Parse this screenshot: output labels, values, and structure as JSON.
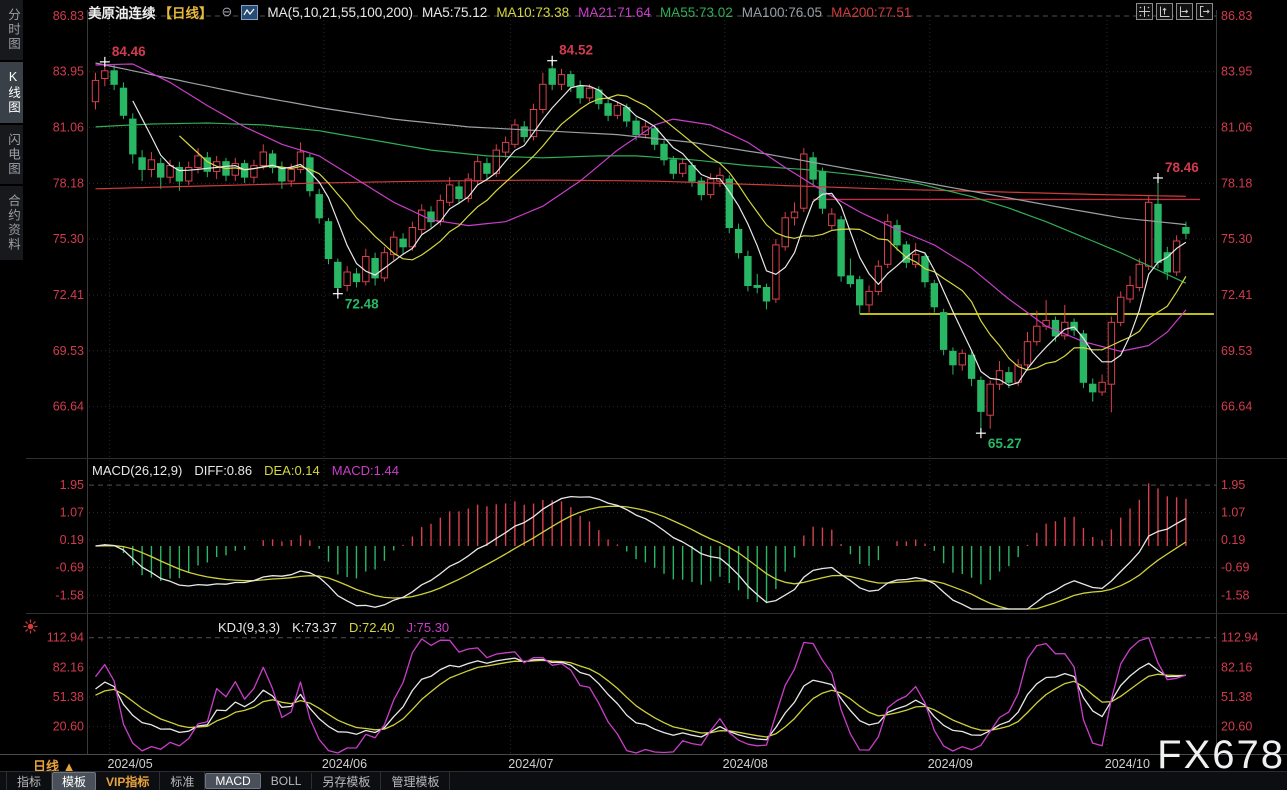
{
  "header": {
    "title": "美原油连续",
    "period_label": "【日线】",
    "collapse_icon": "⊖",
    "ma_setting": "MA(5,10,21,55,100,200)",
    "ma_values": [
      {
        "label": "MA5:75.12",
        "color": "#e8e8e8"
      },
      {
        "label": "MA10:73.38",
        "color": "#d6d640"
      },
      {
        "label": "MA21:71.64",
        "color": "#c93ec9"
      },
      {
        "label": "MA55:73.02",
        "color": "#2fae55"
      },
      {
        "label": "MA100:76.05",
        "color": "#9aa0a6"
      },
      {
        "label": "MA200:77.51",
        "color": "#d03c3c"
      }
    ],
    "icons": [
      "crosshair-icon",
      "scale-y-icon",
      "scale-x-icon",
      "exit-icon"
    ]
  },
  "sidebar": {
    "tabs": [
      {
        "label": "分时图",
        "active": false
      },
      {
        "label": "K线图",
        "active": true
      },
      {
        "label": "闪电图",
        "active": false
      },
      {
        "label": "合约资料",
        "active": false
      }
    ]
  },
  "macd_header": {
    "name": "MACD(26,12,9)",
    "diff": "DIFF:0.86",
    "dea": "DEA:0.14",
    "macd": "MACD:1.44"
  },
  "kdj_header": {
    "name": "KDJ(9,3,3)",
    "k": "K:73.37",
    "d": "D:72.40",
    "j": "J:75.30"
  },
  "bottom": {
    "period_button": "日线",
    "period_arrow": "▲",
    "dates": [
      "2024/05",
      "2024/06",
      "2024/07",
      "2024/08",
      "2024/09",
      "2024/10"
    ],
    "watermark": "FX678",
    "toolbar": [
      {
        "label": "指标",
        "state": "normal"
      },
      {
        "label": "模板",
        "state": "pressed"
      },
      {
        "label": "VIP指标",
        "state": "vip"
      },
      {
        "label": "标准",
        "state": "normal"
      },
      {
        "label": "MACD",
        "state": "pressed"
      },
      {
        "label": "BOLL",
        "state": "normal"
      },
      {
        "label": "另存模板",
        "state": "normal"
      },
      {
        "label": "管理模板",
        "state": "normal"
      }
    ]
  },
  "axes": {
    "main": [
      "86.83",
      "83.95",
      "81.06",
      "78.18",
      "75.30",
      "72.41",
      "69.53",
      "66.64"
    ],
    "macd": [
      "1.95",
      "1.07",
      "0.19",
      "-0.69",
      "-1.58"
    ],
    "kdj": [
      "112.94",
      "82.16",
      "51.38",
      "20.60"
    ]
  },
  "chart_data": {
    "type": "candlestick",
    "title": "美原油连续 日线 (WTI crude continuous, daily)",
    "ylim_main": [
      65.0,
      87.5
    ],
    "macd_panel": {
      "params": "26,12,9",
      "diff": 0.86,
      "dea": 0.14,
      "macd": 1.44,
      "ylim": [
        -2.0,
        2.3
      ]
    },
    "kdj_panel": {
      "params": "9,3,3",
      "k": 73.37,
      "d": 72.4,
      "j": 75.3,
      "ylim": [
        -10,
        135
      ]
    },
    "month_tick_days": [
      2,
      25,
      45,
      68,
      90,
      109
    ],
    "candles": [
      [
        82.4,
        83.9,
        82.0,
        83.5
      ],
      [
        83.6,
        84.46,
        83.2,
        84.0
      ],
      [
        84.0,
        84.3,
        83.0,
        83.3
      ],
      [
        83.1,
        83.4,
        81.5,
        81.7
      ],
      [
        81.5,
        81.8,
        79.2,
        79.7
      ],
      [
        79.5,
        79.9,
        78.3,
        78.9
      ],
      [
        78.9,
        79.8,
        78.5,
        79.4
      ],
      [
        79.2,
        79.5,
        77.9,
        78.5
      ],
      [
        78.5,
        79.4,
        78.2,
        79.1
      ],
      [
        79.0,
        79.3,
        77.8,
        78.3
      ],
      [
        78.3,
        79.3,
        78.1,
        79.0
      ],
      [
        79.0,
        80.0,
        78.7,
        79.6
      ],
      [
        79.5,
        79.8,
        78.5,
        78.8
      ],
      [
        78.8,
        79.6,
        78.4,
        79.3
      ],
      [
        79.3,
        79.5,
        78.3,
        78.6
      ],
      [
        78.6,
        79.5,
        78.3,
        79.2
      ],
      [
        79.2,
        79.4,
        78.2,
        78.5
      ],
      [
        78.5,
        79.4,
        78.2,
        79.1
      ],
      [
        79.1,
        80.2,
        78.9,
        79.8
      ],
      [
        79.7,
        79.9,
        78.7,
        79.0
      ],
      [
        79.0,
        79.3,
        77.9,
        78.3
      ],
      [
        78.3,
        79.2,
        78.0,
        78.9
      ],
      [
        78.9,
        80.3,
        78.7,
        79.8
      ],
      [
        79.5,
        79.7,
        77.5,
        77.8
      ],
      [
        77.6,
        77.9,
        76.1,
        76.4
      ],
      [
        76.2,
        76.4,
        74.0,
        74.3
      ],
      [
        74.1,
        74.3,
        72.48,
        72.8
      ],
      [
        72.9,
        73.9,
        72.6,
        73.6
      ],
      [
        73.5,
        73.8,
        72.8,
        73.1
      ],
      [
        73.1,
        74.8,
        72.9,
        74.4
      ],
      [
        74.3,
        74.6,
        72.9,
        73.3
      ],
      [
        73.3,
        74.9,
        73.1,
        74.6
      ],
      [
        74.5,
        75.7,
        74.2,
        75.4
      ],
      [
        75.3,
        75.6,
        74.5,
        74.9
      ],
      [
        74.9,
        76.2,
        74.7,
        75.9
      ],
      [
        75.8,
        77.1,
        75.5,
        76.8
      ],
      [
        76.7,
        77.0,
        75.9,
        76.2
      ],
      [
        76.2,
        77.6,
        76.0,
        77.3
      ],
      [
        77.2,
        78.5,
        77.0,
        78.1
      ],
      [
        78.0,
        78.3,
        77.1,
        77.4
      ],
      [
        77.4,
        78.7,
        77.2,
        78.4
      ],
      [
        78.3,
        79.6,
        78.1,
        79.3
      ],
      [
        79.2,
        79.5,
        78.4,
        78.7
      ],
      [
        78.7,
        80.2,
        78.5,
        79.9
      ],
      [
        79.8,
        80.6,
        79.5,
        80.3
      ],
      [
        80.2,
        81.5,
        80.0,
        81.2
      ],
      [
        81.1,
        81.4,
        80.3,
        80.6
      ],
      [
        80.6,
        82.3,
        80.4,
        82.0
      ],
      [
        82.0,
        83.9,
        81.8,
        83.3
      ],
      [
        84.1,
        84.52,
        83.0,
        83.3
      ],
      [
        83.3,
        84.1,
        83.0,
        83.8
      ],
      [
        83.8,
        84.0,
        82.9,
        83.2
      ],
      [
        83.2,
        83.5,
        82.3,
        82.6
      ],
      [
        82.6,
        83.3,
        82.4,
        83.1
      ],
      [
        83.0,
        83.2,
        82.0,
        82.3
      ],
      [
        82.3,
        82.6,
        81.4,
        81.7
      ],
      [
        81.7,
        82.4,
        81.5,
        82.2
      ],
      [
        82.1,
        82.3,
        81.1,
        81.4
      ],
      [
        81.4,
        81.6,
        80.4,
        80.7
      ],
      [
        80.7,
        81.4,
        80.5,
        81.1
      ],
      [
        81.0,
        81.2,
        79.9,
        80.2
      ],
      [
        80.2,
        80.4,
        79.1,
        79.4
      ],
      [
        79.4,
        79.6,
        78.4,
        78.7
      ],
      [
        78.7,
        79.5,
        78.5,
        79.2
      ],
      [
        79.1,
        79.3,
        78.0,
        78.3
      ],
      [
        78.3,
        78.5,
        77.3,
        77.6
      ],
      [
        77.6,
        78.7,
        77.4,
        78.4
      ],
      [
        78.3,
        79.0,
        78.0,
        78.6
      ],
      [
        78.4,
        78.6,
        75.6,
        75.9
      ],
      [
        75.8,
        76.1,
        74.3,
        74.6
      ],
      [
        74.4,
        74.7,
        72.6,
        72.9
      ],
      [
        72.9,
        73.5,
        72.5,
        72.8
      ],
      [
        72.8,
        73.0,
        71.67,
        72.1
      ],
      [
        72.2,
        75.3,
        72.0,
        75.0
      ],
      [
        74.9,
        76.7,
        74.7,
        76.4
      ],
      [
        76.4,
        77.2,
        76.0,
        76.7
      ],
      [
        76.9,
        80.0,
        76.7,
        79.7
      ],
      [
        79.5,
        79.8,
        78.1,
        78.4
      ],
      [
        78.8,
        79.0,
        76.6,
        76.9
      ],
      [
        76.0,
        76.9,
        75.8,
        76.6
      ],
      [
        76.3,
        76.5,
        73.1,
        73.4
      ],
      [
        73.4,
        74.3,
        72.8,
        73.0
      ],
      [
        73.2,
        73.4,
        71.43,
        71.9
      ],
      [
        71.9,
        72.9,
        71.5,
        72.6
      ],
      [
        72.6,
        74.2,
        72.4,
        73.9
      ],
      [
        74.0,
        76.6,
        73.8,
        76.2
      ],
      [
        76.0,
        76.3,
        74.7,
        75.0
      ],
      [
        75.0,
        75.2,
        73.8,
        74.1
      ],
      [
        74.0,
        75.1,
        73.8,
        74.5
      ],
      [
        74.4,
        74.6,
        72.8,
        73.1
      ],
      [
        73.0,
        73.2,
        71.5,
        71.8
      ],
      [
        71.5,
        71.7,
        69.3,
        69.6
      ],
      [
        69.5,
        69.7,
        68.3,
        68.8
      ],
      [
        68.8,
        69.6,
        68.5,
        69.4
      ],
      [
        69.3,
        69.5,
        67.7,
        68.1
      ],
      [
        68.0,
        68.2,
        65.27,
        66.4
      ],
      [
        66.2,
        68.0,
        65.5,
        67.8
      ],
      [
        67.8,
        69.0,
        67.5,
        68.5
      ],
      [
        68.4,
        68.7,
        67.6,
        67.9
      ],
      [
        67.9,
        69.1,
        67.7,
        68.8
      ],
      [
        68.8,
        70.5,
        68.6,
        70.0
      ],
      [
        70.0,
        71.6,
        69.8,
        70.8
      ],
      [
        70.8,
        72.15,
        70.6,
        71.1
      ],
      [
        71.1,
        71.3,
        70.0,
        70.3
      ],
      [
        70.3,
        71.9,
        70.1,
        71.0
      ],
      [
        71.0,
        71.2,
        70.3,
        70.6
      ],
      [
        70.4,
        70.6,
        67.6,
        67.9
      ],
      [
        67.8,
        68.1,
        66.9,
        67.4
      ],
      [
        67.4,
        68.3,
        67.2,
        67.9
      ],
      [
        67.8,
        71.3,
        66.35,
        71.0
      ],
      [
        71.0,
        72.6,
        70.8,
        72.3
      ],
      [
        72.2,
        73.4,
        72.0,
        72.9
      ],
      [
        72.8,
        74.3,
        72.6,
        74.0
      ],
      [
        73.9,
        77.5,
        73.7,
        77.2
      ],
      [
        77.1,
        78.46,
        73.8,
        74.1
      ],
      [
        74.6,
        74.9,
        73.2,
        73.6
      ],
      [
        73.6,
        75.5,
        73.4,
        75.2
      ],
      [
        75.9,
        76.2,
        75.3,
        75.6
      ]
    ],
    "annotations": [
      {
        "day": 1,
        "price": 84.46,
        "pos": "high",
        "label": "84.46"
      },
      {
        "day": 26,
        "price": 72.48,
        "pos": "low",
        "label": "72.48"
      },
      {
        "day": 49,
        "price": 84.52,
        "pos": "high",
        "label": "84.52"
      },
      {
        "day": 95,
        "price": 65.27,
        "pos": "low",
        "label": "65.27"
      },
      {
        "day": 114,
        "price": 78.46,
        "pos": "high",
        "label": "78.46"
      }
    ],
    "hlines": [
      {
        "price": 71.43,
        "from": 82,
        "to": 120,
        "color": "#d8d818",
        "width": 1.8
      },
      {
        "price": 77.35,
        "from": 77,
        "to": 118.5,
        "color": "#c2303e",
        "width": 1.3
      }
    ],
    "computed_ma": [
      {
        "window": 5,
        "color": "#e8e8e8"
      },
      {
        "window": 10,
        "color": "#d6d640"
      }
    ],
    "ma_overlays": [
      {
        "name": "MA21",
        "color": "#c93ec9",
        "anchors": [
          [
            0,
            84.3
          ],
          [
            4,
            84.35
          ],
          [
            8,
            83.4
          ],
          [
            12,
            82.2
          ],
          [
            16,
            81.1
          ],
          [
            20,
            80.2
          ],
          [
            24,
            79.6
          ],
          [
            28,
            78.4
          ],
          [
            32,
            77.2
          ],
          [
            36,
            76.3
          ],
          [
            40,
            76.0
          ],
          [
            44,
            76.2
          ],
          [
            48,
            77.0
          ],
          [
            52,
            78.3
          ],
          [
            56,
            79.9
          ],
          [
            60,
            81.2
          ],
          [
            62,
            81.5
          ],
          [
            66,
            81.2
          ],
          [
            70,
            80.3
          ],
          [
            74,
            79.0
          ],
          [
            78,
            77.8
          ],
          [
            82,
            76.7
          ],
          [
            86,
            75.8
          ],
          [
            90,
            75.0
          ],
          [
            94,
            73.8
          ],
          [
            98,
            72.2
          ],
          [
            102,
            70.8
          ],
          [
            106,
            70.0
          ],
          [
            110,
            69.5
          ],
          [
            113,
            69.8
          ],
          [
            115,
            70.5
          ],
          [
            117,
            71.64
          ]
        ]
      },
      {
        "name": "MA55",
        "color": "#2fae55",
        "anchors": [
          [
            0,
            81.1
          ],
          [
            6,
            81.25
          ],
          [
            12,
            81.3
          ],
          [
            18,
            81.2
          ],
          [
            24,
            80.9
          ],
          [
            30,
            80.4
          ],
          [
            36,
            79.9
          ],
          [
            42,
            79.6
          ],
          [
            48,
            79.5
          ],
          [
            54,
            79.6
          ],
          [
            58,
            79.6
          ],
          [
            64,
            79.4
          ],
          [
            70,
            79.1
          ],
          [
            76,
            78.9
          ],
          [
            82,
            78.6
          ],
          [
            88,
            78.2
          ],
          [
            94,
            77.5
          ],
          [
            98,
            76.9
          ],
          [
            102,
            76.2
          ],
          [
            106,
            75.4
          ],
          [
            110,
            74.6
          ],
          [
            114,
            73.7
          ],
          [
            117,
            73.02
          ]
        ]
      },
      {
        "name": "MA100",
        "color": "#9aa0a6",
        "anchors": [
          [
            0,
            84.4
          ],
          [
            8,
            83.6
          ],
          [
            16,
            82.8
          ],
          [
            24,
            82.1
          ],
          [
            32,
            81.5
          ],
          [
            40,
            81.1
          ],
          [
            48,
            80.9
          ],
          [
            56,
            80.7
          ],
          [
            64,
            80.3
          ],
          [
            72,
            79.7
          ],
          [
            80,
            79.0
          ],
          [
            88,
            78.3
          ],
          [
            96,
            77.6
          ],
          [
            104,
            76.9
          ],
          [
            110,
            76.4
          ],
          [
            117,
            76.05
          ]
        ]
      },
      {
        "name": "MA200",
        "color": "#d03c3c",
        "anchors": [
          [
            0,
            77.9
          ],
          [
            12,
            78.05
          ],
          [
            24,
            78.2
          ],
          [
            36,
            78.3
          ],
          [
            48,
            78.35
          ],
          [
            60,
            78.3
          ],
          [
            72,
            78.1
          ],
          [
            84,
            77.9
          ],
          [
            96,
            77.75
          ],
          [
            108,
            77.6
          ],
          [
            117,
            77.51
          ]
        ]
      }
    ],
    "colors": {
      "up": "#d8404d",
      "down": "#29b765",
      "axis_label": "#d23b4e",
      "date_label": "#d0d0d0",
      "grid": "#2a2a2a",
      "grid_bright": "#4f4f4f",
      "border": "#3a3a3a",
      "diff_line": "#e8e8e8",
      "dea_line": "#cfcf3a",
      "k_line": "#e8e8e8",
      "d_line": "#cfcf3a",
      "j_line": "#c93ec9",
      "annotation_high": "#d23b4e",
      "annotation_low": "#29b765",
      "cross_marker": "#ffffff"
    }
  }
}
